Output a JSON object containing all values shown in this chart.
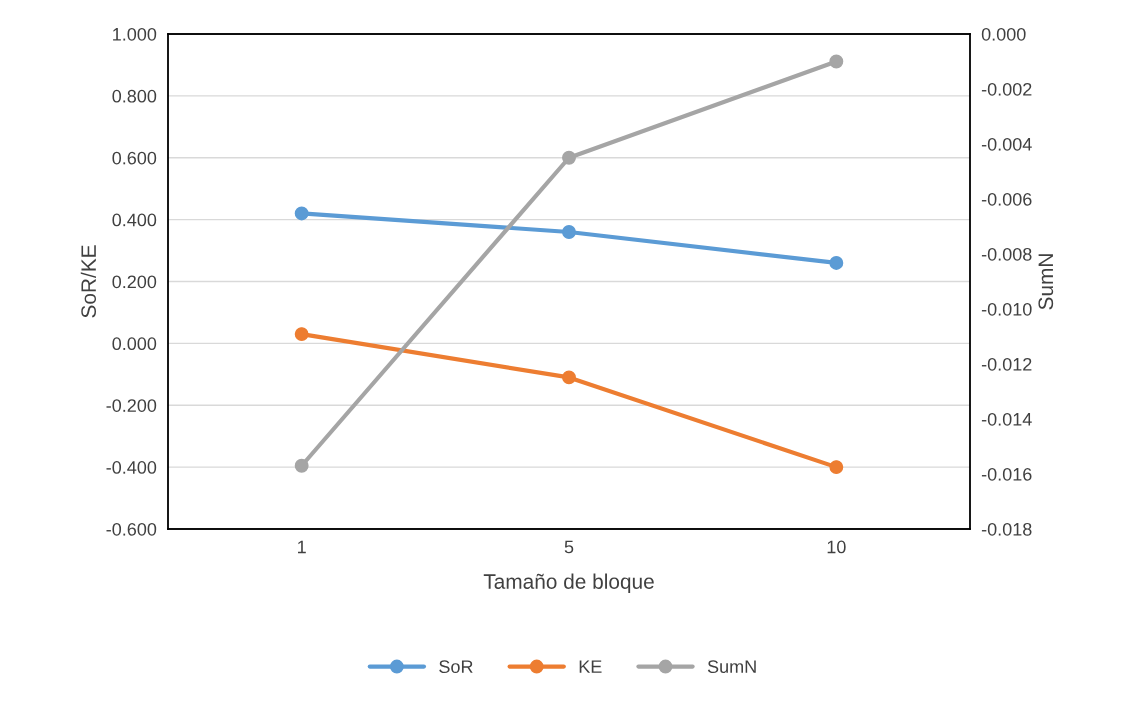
{
  "chart_data": {
    "type": "line",
    "xlabel": "Tamaño de bloque",
    "ylabel": "SoR/KE",
    "y2label": "SumN",
    "categories": [
      "1",
      "5",
      "10"
    ],
    "series": [
      {
        "name": "SoR",
        "color": "#5b9bd5",
        "values": [
          0.42,
          0.36,
          0.26
        ]
      },
      {
        "name": "KE",
        "color": "#ed7d31",
        "values": [
          0.03,
          -0.11,
          -0.4
        ]
      },
      {
        "name": "SumN",
        "color": "#a5a5a5",
        "values": [
          -0.0157,
          -0.0045,
          -0.001
        ],
        "axis": "y2"
      }
    ],
    "ylim": [
      -0.6,
      1.0
    ],
    "yticks": [
      {
        "value": -0.6,
        "label": "-0.600"
      },
      {
        "value": -0.4,
        "label": "-0.400"
      },
      {
        "value": -0.2,
        "label": "-0.200"
      },
      {
        "value": 0.0,
        "label": "0.000"
      },
      {
        "value": 0.2,
        "label": "0.200"
      },
      {
        "value": 0.4,
        "label": "0.400"
      },
      {
        "value": 0.6,
        "label": "0.600"
      },
      {
        "value": 0.8,
        "label": "0.800"
      },
      {
        "value": 1.0,
        "label": "1.000"
      }
    ],
    "y2lim": [
      -0.018,
      0.0
    ],
    "y2ticks": [
      {
        "value": -0.018,
        "label": "-0.018"
      },
      {
        "value": -0.016,
        "label": "-0.016"
      },
      {
        "value": -0.014,
        "label": "-0.014"
      },
      {
        "value": -0.012,
        "label": "-0.012"
      },
      {
        "value": -0.01,
        "label": "-0.010"
      },
      {
        "value": -0.008,
        "label": "-0.008"
      },
      {
        "value": -0.006,
        "label": "-0.006"
      },
      {
        "value": -0.004,
        "label": "-0.004"
      },
      {
        "value": -0.002,
        "label": "-0.002"
      },
      {
        "value": 0.0,
        "label": "0.000"
      }
    ],
    "grid": "y",
    "legend": "bottom",
    "marker": "circle",
    "line_style": "solid"
  }
}
